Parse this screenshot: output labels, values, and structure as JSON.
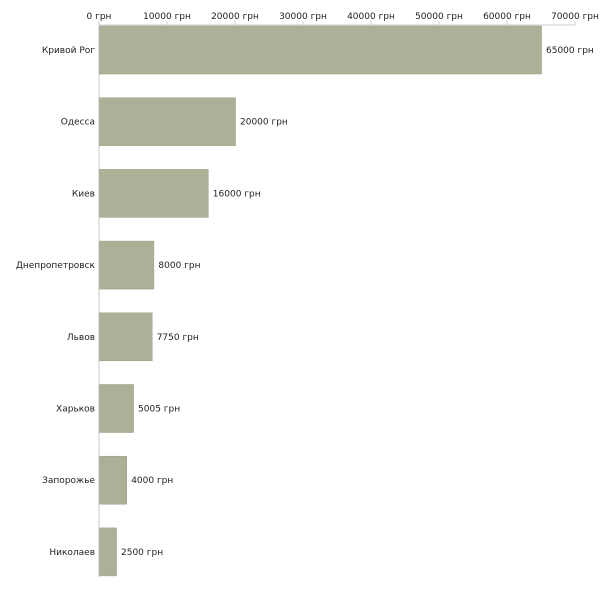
{
  "chart_data": {
    "type": "bar",
    "orientation": "horizontal",
    "categories": [
      "Кривой Рог",
      "Одесса",
      "Киев",
      "Днепропетровск",
      "Львов",
      "Харьков",
      "Запорожье",
      "Николаев"
    ],
    "values": [
      65000,
      20000,
      16000,
      8000,
      7750,
      5005,
      4000,
      2500
    ],
    "value_labels": [
      "65000 грн",
      "20000 грн",
      "16000 грн",
      "8000 грн",
      "7750 грн",
      "5005 грн",
      "4000 грн",
      "2500 грн"
    ],
    "xlim": [
      0,
      70000
    ],
    "x_ticks": [
      0,
      10000,
      20000,
      30000,
      40000,
      50000,
      60000,
      70000
    ],
    "x_tick_labels": [
      "0 грн",
      "10000 грн",
      "20000 грн",
      "30000 грн",
      "40000 грн",
      "50000 грн",
      "60000 грн",
      "70000 грн"
    ],
    "axis_position": "top",
    "grid": false,
    "legend": "none",
    "title": "",
    "xlabel": "",
    "ylabel": "",
    "colors": {
      "bar": "#adb096",
      "bar_edge": "#9a9d84",
      "axis": "#c8c8c8",
      "text": "#222222"
    }
  }
}
